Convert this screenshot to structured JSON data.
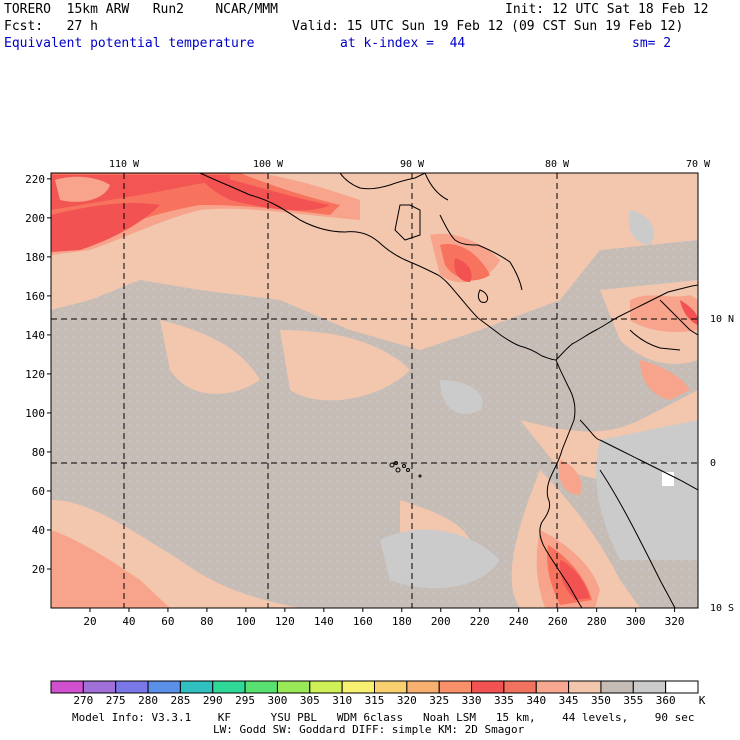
{
  "header": {
    "model": "TORERO  15km ARW   Run2    NCAR/MMM",
    "init": "Init: 12 UTC Sat 18 Feb 12",
    "fcst": "Fcst:   27 h",
    "valid": "Valid: 15 UTC Sun 19 Feb 12 (09 CST Sun 19 Feb 12)",
    "field": "Equivalent potential temperature",
    "level": "at k-index =  44",
    "smooth": "sm= 2"
  },
  "map": {
    "lon_labels": [
      "110 W",
      "100 W",
      "90 W",
      "80 W",
      "70 W"
    ],
    "lat_labels": [
      "10 N",
      "0",
      "10 S"
    ],
    "y_ticks": [
      "20",
      "40",
      "60",
      "80",
      "100",
      "120",
      "140",
      "160",
      "180",
      "200",
      "220"
    ],
    "x_ticks": [
      "20",
      "40",
      "60",
      "80",
      "100",
      "120",
      "140",
      "160",
      "180",
      "200",
      "220",
      "240",
      "260",
      "280",
      "300",
      "320"
    ],
    "colors": {
      "grey_dark": "#c6bcb6",
      "grey_light": "#cbcbcb",
      "peach": "#f3c6ae",
      "salmon": "#f8a38b",
      "orange_red": "#f8735e",
      "red": "#f25252",
      "white": "#ffffff"
    }
  },
  "colorbar": {
    "labels": [
      "270",
      "275",
      "280",
      "285",
      "290",
      "295",
      "300",
      "305",
      "310",
      "315",
      "320",
      "325",
      "330",
      "335",
      "340",
      "345",
      "350",
      "355",
      "360"
    ],
    "unit": "K",
    "colors": [
      "#d050d0",
      "#a070d8",
      "#7a78e8",
      "#5a90e8",
      "#30c0c0",
      "#30d898",
      "#58e070",
      "#98e858",
      "#d0f058",
      "#f8f070",
      "#f8d070",
      "#f8b070",
      "#f8906a",
      "#f25252",
      "#f27260",
      "#f8a890",
      "#f3c6ae",
      "#c6bcb6",
      "#cbcbcb",
      "#ffffff"
    ]
  },
  "footer": {
    "line1": "Model Info: V3.3.1    KF      YSU PBL   WDM 6class   Noah LSM   15 km,    44 levels,    90 sec",
    "line2": "LW: Godd SW: Goddard DIFF: simple KM: 2D Smagor"
  }
}
